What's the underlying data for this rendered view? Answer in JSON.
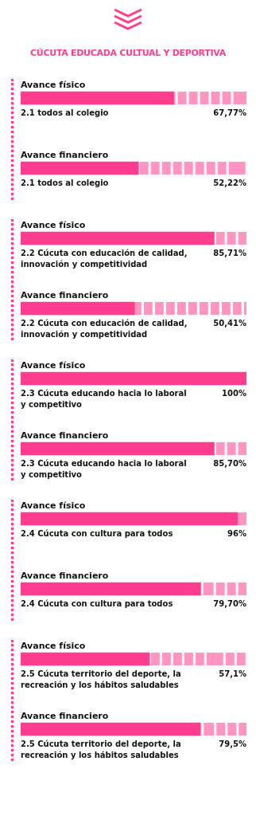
{
  "chart_data": {
    "type": "bar",
    "orientation": "horizontal",
    "title": "CÚCUTA EDUCADA CULTUAL Y DEPORTIVA",
    "categories": [
      "2.1 todos al colegio",
      "2.1 todos al colegio",
      "2.2 Cúcuta con educación de calidad, innovación y competitividad",
      "2.2 Cúcuta con educación de calidad, innovación y competitividad",
      "2.3 Cúcuta educando hacia lo laboral y competitivo",
      "2.3 Cúcuta educando hacia lo laboral y competitivo",
      "2.4 Cúcuta con cultura para todos",
      "2.4 Cúcuta con cultura para todos",
      "2.5 Cúcuta territorio del deporte, la recreación y los hábitos saludables",
      "2.5 Cúcuta territorio del deporte, la recreación y los hábitos saludables"
    ],
    "values": [
      67.77,
      52.22,
      85.71,
      50.41,
      100,
      85.7,
      96,
      79.7,
      57.1,
      79.5
    ],
    "value_labels": [
      "67,77%",
      "52,22%",
      "85,71%",
      "50,41%",
      "100%",
      "85,70%",
      "96%",
      "79,70%",
      "57,1%",
      "79,5%"
    ],
    "annotations": [
      "Avance físico",
      "Avance financiero",
      "Avance físico",
      "Avance financiero",
      "Avance físico",
      "Avance financiero",
      "Avance físico",
      "Avance financiero",
      "Avance físico",
      "Avance financiero"
    ],
    "color": "#ff3d8f",
    "xlim": [
      0,
      100
    ],
    "tick_labels": false
  }
}
